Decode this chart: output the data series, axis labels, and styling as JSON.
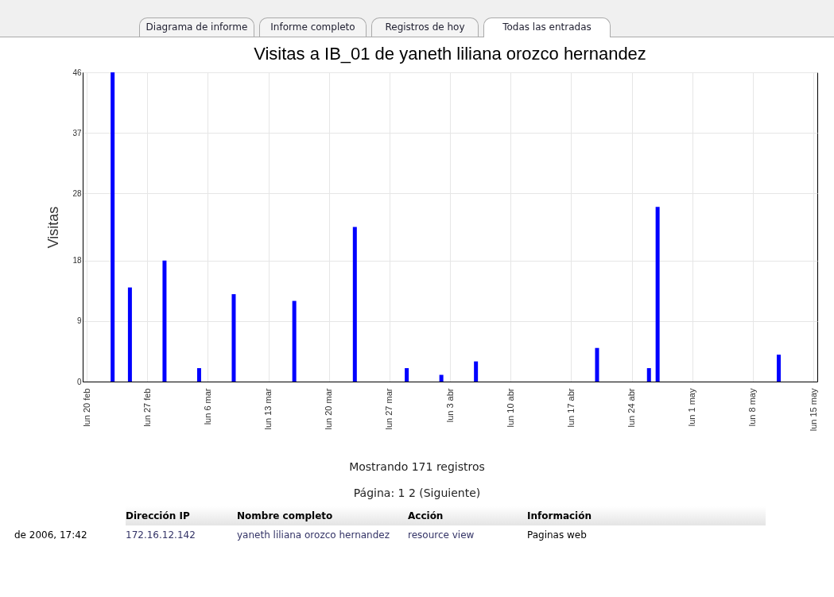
{
  "chart_data": {
    "type": "bar",
    "title": "Visitas a IB_01 de yaneth liliana orozco hernandez",
    "ylabel": "Visitas",
    "x": [
      "--02-23",
      "--02-25",
      "--03-01",
      "--03-05",
      "--03-09",
      "--03-16",
      "--03-23",
      "--03-29",
      "--04-02",
      "--04-06",
      "--04-20",
      "--04-26",
      "--04-27",
      "--05-11"
    ],
    "values": [
      46,
      14,
      18,
      2,
      13,
      12,
      23,
      2,
      1,
      3,
      5,
      2,
      26,
      4
    ],
    "color": "#0000ff",
    "xlim": [
      "--02-20",
      "--05-15"
    ],
    "xticks": [
      {
        "value": "--02-20",
        "label": "lun  20 feb"
      },
      {
        "value": "--02-27",
        "label": "lun  27 feb"
      },
      {
        "value": "--03-06",
        "label": "lun 6 mar"
      },
      {
        "value": "--03-13",
        "label": "lun  13 mar"
      },
      {
        "value": "--03-20",
        "label": "lun  20 mar"
      },
      {
        "value": "--03-27",
        "label": "lun  27 mar"
      },
      {
        "value": "--04-03",
        "label": "lun 3 abr"
      },
      {
        "value": "--04-10",
        "label": "lun  10 abr"
      },
      {
        "value": "--04-17",
        "label": "lun  17 abr"
      },
      {
        "value": "--04-24",
        "label": "lun  24 abr"
      },
      {
        "value": "--05-01",
        "label": "lun 1 may"
      },
      {
        "value": "--05-08",
        "label": "lun 8 may"
      },
      {
        "value": "--05-15",
        "label": "lun  15 may"
      }
    ],
    "ylim": [
      0,
      46
    ],
    "yticks": [
      0,
      9,
      18,
      28,
      37,
      46
    ],
    "grid": true,
    "annotations": [
      "Diagrama de informe",
      "Informe completo",
      "Registros de hoy",
      "Todas las entradas",
      "Mostrando 171 registros",
      "Página:  1  2  (Siguiente)",
      "Dirección IP",
      "Nombre completo",
      "Acción",
      "Información",
      "de 2006, 17:42",
      "172.16.12.142",
      "yaneth liliana orozco hernandez",
      "resource view",
      "Paginas web"
    ]
  }
}
